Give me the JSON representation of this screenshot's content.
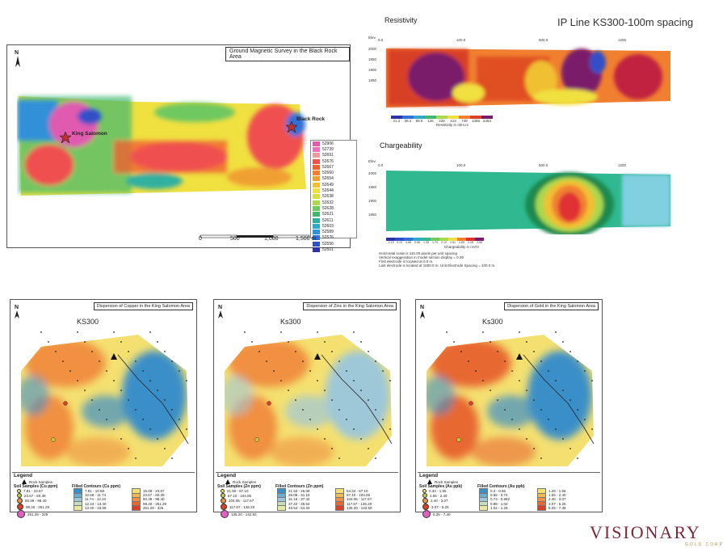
{
  "magnetic": {
    "title": "Ground Magnetic Survey in the Black Rock Area",
    "north": "N",
    "labels": {
      "king_salomon": "King Salomon",
      "black_rock": "Black Rock"
    },
    "legend": [
      {
        "v": "52906",
        "c": "#e05ab0"
      },
      {
        "v": "52739",
        "c": "#f070c0"
      },
      {
        "v": "52691",
        "c": "#f09aa0"
      },
      {
        "v": "52676",
        "c": "#f05050"
      },
      {
        "v": "52667",
        "c": "#f06030"
      },
      {
        "v": "52660",
        "c": "#f08030"
      },
      {
        "v": "52654",
        "c": "#f0a030"
      },
      {
        "v": "52649",
        "c": "#f0c030"
      },
      {
        "v": "52644",
        "c": "#f0e040"
      },
      {
        "v": "52638",
        "c": "#d8e040"
      },
      {
        "v": "52632",
        "c": "#a8d850"
      },
      {
        "v": "52628",
        "c": "#70c860"
      },
      {
        "v": "52621",
        "c": "#40b870"
      },
      {
        "v": "52611",
        "c": "#30b0a0"
      },
      {
        "v": "52603",
        "c": "#30a8c8"
      },
      {
        "v": "52589",
        "c": "#3090d8"
      },
      {
        "v": "52576",
        "c": "#3070d8"
      },
      {
        "v": "52556",
        "c": "#3050c8"
      },
      {
        "v": "52501",
        "c": "#3030a8"
      }
    ],
    "scale": [
      "0",
      "500",
      "1,000",
      "1,500 m"
    ]
  },
  "ip": {
    "title": "IP Line KS300-100m spacing",
    "resistivity_label": "Resistivity",
    "chargeability_label": "Chargeability",
    "elev_label": "Elev.",
    "res_ticks": [
      "0.0",
      "100.0",
      "500.0",
      "1200"
    ],
    "charge_ticks": [
      "0.0",
      "100.0",
      "500.0",
      "1200"
    ],
    "res_elev": [
      "2000",
      "1950",
      "1900",
      "1850"
    ],
    "charge_elev": [
      "2000",
      "1950",
      "1900",
      "1850"
    ],
    "res_legend": [
      "21.2",
      "38.4",
      "69.5",
      "126",
      "228",
      "413",
      "748",
      "1355",
      "2454"
    ],
    "res_units": "Resistivity in ohm.m",
    "charge_legend": [
      "-0.19",
      "0.19",
      "0.58",
      "0.96",
      "1.35",
      "1.74",
      "2.12",
      "2.51",
      "2.89",
      "3.28",
      "3.66"
    ],
    "charge_units": "Chargeability in mV/V",
    "notes": [
      "Horizontal scale is 110.00 pixels per unit spacing",
      "Vertical exaggeration in model section display = 0.39",
      "First electrode is located at 0.0 m.",
      "Last electrode is located at 1500.0 m.     Unit Electrode Spacing = 100.0 m."
    ]
  },
  "soil_maps": [
    {
      "title": "Dispersion of Copper in the King Salomon Area",
      "line": "KS300",
      "soil_header": "Soil Samples (Cu ppm)",
      "contour_header": "Filled Contours (Cu ppm)",
      "samples": [
        "7.81 - 23.67",
        "23.67 - 60.39",
        "60.39 - 98.40",
        "98.40 - 251.29",
        "251.29 - 325"
      ],
      "contours": [
        {
          "v": "7.81 - 10.58",
          "c": "#3a8fc8"
        },
        {
          "v": "10.58 - 11.74",
          "c": "#6aaed0"
        },
        {
          "v": "11.74 - 12.24",
          "c": "#9ec8d8"
        },
        {
          "v": "12.24 - 13.40",
          "c": "#c8dcc0"
        },
        {
          "v": "13.40 - 16.08",
          "c": "#e8e8a0"
        },
        {
          "v": "16.08 - 23.67",
          "c": "#f4e070"
        },
        {
          "v": "23.67 - 60.39",
          "c": "#f4b850"
        },
        {
          "v": "60.39 - 98.40",
          "c": "#f09040"
        },
        {
          "v": "98.40 - 251.29",
          "c": "#e86830"
        },
        {
          "v": "251.29 - 325",
          "c": "#d84028"
        }
      ],
      "palette": {
        "low": "#3a8fc8",
        "mid": "#f4e070",
        "high": "#f09040"
      }
    },
    {
      "title": "Dispersion of Zinc in the King Salomon Area",
      "line": "Ks300",
      "soil_header": "Soil Samples (Zn ppm)",
      "contour_header": "Filled Contours (Zn ppm)",
      "samples": [
        "21.90 - 67.10",
        "67.10 - 104.05",
        "104.05 - 117.67",
        "117.67 - 136.20",
        "136.20 - 142.50"
      ],
      "contours": [
        {
          "v": "21.93 - 26.08",
          "c": "#3a8fc8"
        },
        {
          "v": "26.08 - 31.16",
          "c": "#6aaed0"
        },
        {
          "v": "31.16 - 37.42",
          "c": "#9ec8d8"
        },
        {
          "v": "37.42 - 45.54",
          "c": "#c8dcc0"
        },
        {
          "v": "45.54 - 54.34",
          "c": "#e8e8a0"
        },
        {
          "v": "54.34 - 67.10",
          "c": "#f4e070"
        },
        {
          "v": "67.10 - 104.05",
          "c": "#f4b850"
        },
        {
          "v": "104.05 - 117.67",
          "c": "#f09040"
        },
        {
          "v": "117.67 - 136.20",
          "c": "#e86830"
        },
        {
          "v": "136.20 - 142.50",
          "c": "#d84028"
        }
      ],
      "palette": {
        "low": "#9ec8d8",
        "mid": "#f4e070",
        "high": "#f09040"
      }
    },
    {
      "title": "Dispersion of Gold in the King Salomon Area",
      "line": "Ks300",
      "soil_header": "Soil Samples (Au ppb)",
      "contour_header": "Filled Contours (Au ppb)",
      "samples": [
        "0.33 - 1.55",
        "1.55 - 2.40",
        "2.40 - 3.07",
        "3.07 - 5.25",
        "5.25 - 7.40"
      ],
      "contours": [
        {
          "v": "0.3 - 0.56",
          "c": "#3a8fc8"
        },
        {
          "v": "0.56 - 0.74",
          "c": "#6aaed0"
        },
        {
          "v": "0.74 - 0.882",
          "c": "#9ec8d8"
        },
        {
          "v": "0.88 - 1.02",
          "c": "#c8dcc0"
        },
        {
          "v": "1.02 - 1.29",
          "c": "#e8e8a0"
        },
        {
          "v": "1.29 - 1.55",
          "c": "#f4e070"
        },
        {
          "v": "1.55 - 2.40",
          "c": "#f4b850"
        },
        {
          "v": "2.40 - 3.07",
          "c": "#f09040"
        },
        {
          "v": "3.07 - 5.25",
          "c": "#e86830"
        },
        {
          "v": "5.25 - 7.38",
          "c": "#d84028"
        }
      ],
      "palette": {
        "low": "#3a8fc8",
        "mid": "#f4e070",
        "high": "#e86830"
      }
    }
  ],
  "soil_common": {
    "legend_title": "Legend",
    "rock_samples": "Rock Samples",
    "roads": "Roads",
    "survey_station": "IP Survey Station",
    "scale": [
      "0",
      "100",
      "200",
      "300 m"
    ],
    "north": "N"
  },
  "brand": {
    "name": "VISIONARY",
    "sub": "GOLD CORP"
  }
}
